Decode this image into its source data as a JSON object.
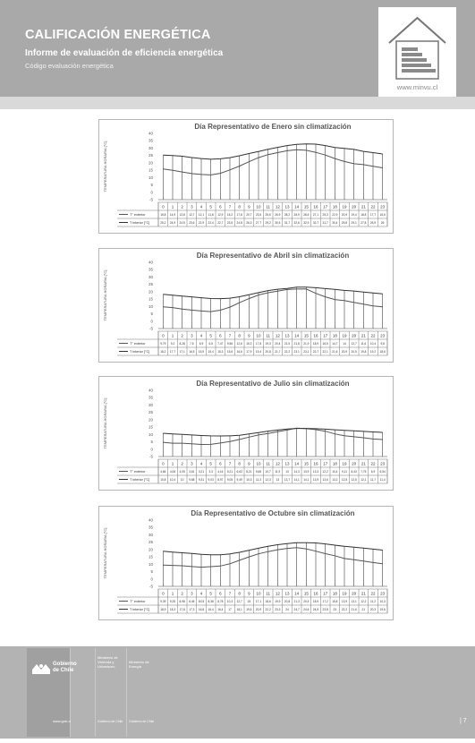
{
  "header": {
    "title": "CALIFICACIÓN ENERGÉTICA",
    "subtitle": "Informe de evaluación de eficiencia energética",
    "code": "Código evaluación energética",
    "url": "www.minvu.cl"
  },
  "chart_data": [
    {
      "type": "line",
      "title": "Día Representativo de Enero sin climatización",
      "ylabel": "TEMPERATURA HORARIA [°C]",
      "ylim": [
        -5,
        40
      ],
      "yticks": [
        "40",
        "35",
        "30",
        "25",
        "20",
        "15",
        "10",
        "5",
        "0",
        "-5"
      ],
      "x": [
        0,
        1,
        2,
        3,
        4,
        5,
        6,
        7,
        8,
        9,
        10,
        11,
        12,
        13,
        14,
        15,
        16,
        17,
        18,
        19,
        20,
        21,
        22,
        23
      ],
      "series": [
        {
          "name": "T° exterior",
          "values": [
            15.8,
            14.9,
            13.8,
            12.7,
            12.1,
            11.8,
            12.9,
            15.2,
            17.8,
            20.7,
            23.5,
            25.6,
            26.9,
            28.2,
            28.9,
            28.5,
            27.1,
            25.3,
            22.9,
            20.9,
            19.4,
            18.8,
            17.7,
            16.6
          ]
        },
        {
          "name": "T interior [°C]",
          "values": [
            25.2,
            24.9,
            24.5,
            23.6,
            22.9,
            22.4,
            22.7,
            23.5,
            24.8,
            26.3,
            27.7,
            29.2,
            30.5,
            31.7,
            32.6,
            32.9,
            32.7,
            31.7,
            30.4,
            29.8,
            29.1,
            27.8,
            26.9,
            26
          ]
        }
      ],
      "row_labels": [
        "T° exterior",
        "T interior [°C]"
      ]
    },
    {
      "type": "line",
      "title": "Día Representativo de Abril sin climatización",
      "ylabel": "TEMPERATURA HORARIA [°C]",
      "ylim": [
        -5,
        40
      ],
      "yticks": [
        "40",
        "35",
        "30",
        "25",
        "20",
        "15",
        "10",
        "5",
        "0",
        "-5"
      ],
      "x": [
        0,
        1,
        2,
        3,
        4,
        5,
        6,
        7,
        8,
        9,
        10,
        11,
        12,
        13,
        14,
        15,
        16,
        17,
        18,
        19,
        20,
        21,
        22,
        23
      ],
      "series": [
        {
          "name": "T° exterior",
          "values": [
            9.79,
            9.2,
            8.28,
            7.5,
            6.9,
            6.5,
            7.47,
            9.56,
            12.6,
            15.3,
            17.8,
            19.3,
            20.4,
            21.5,
            21.8,
            21.9,
            18.9,
            16.5,
            14.7,
            14,
            12.7,
            11.6,
            10.4,
            9.8
          ]
        },
        {
          "name": "T interior [°C]",
          "values": [
            18.2,
            17.7,
            17.1,
            16.5,
            15.9,
            15.4,
            15.3,
            15.6,
            16.6,
            17.9,
            19.4,
            20.8,
            21.7,
            22.2,
            23.1,
            23.1,
            22.7,
            22.1,
            21.6,
            20.9,
            20.5,
            19.8,
            19.2,
            18.6
          ]
        }
      ],
      "row_labels": [
        "T° exterior",
        "T interior [°C]"
      ]
    },
    {
      "type": "line",
      "title": "Día Representativo de Julio sin climatización",
      "ylabel": "TEMPERATURA HORARIA [°C]",
      "ylim": [
        -5,
        40
      ],
      "yticks": [
        "40",
        "35",
        "30",
        "25",
        "20",
        "15",
        "10",
        "5",
        "0",
        "-5"
      ],
      "x": [
        0,
        1,
        2,
        3,
        4,
        5,
        6,
        7,
        8,
        9,
        10,
        11,
        12,
        13,
        14,
        15,
        16,
        17,
        18,
        19,
        20,
        21,
        22,
        23
      ],
      "series": [
        {
          "name": "T° exterior",
          "values": [
            4.66,
            4.06,
            4.05,
            3.61,
            3.21,
            3.3,
            4.16,
            5.21,
            6.63,
            8.21,
            9.65,
            10.7,
            11.9,
            13,
            14.3,
            13.9,
            13.3,
            12.2,
            10.4,
            9.11,
            8.43,
            7.75,
            6.9,
            6.54
          ]
        },
        {
          "name": "T interior [°C]",
          "values": [
            10.8,
            10.4,
            10,
            9.68,
            9.31,
            9.03,
            8.97,
            9.05,
            9.49,
            10.3,
            11.3,
            12.3,
            13,
            13.7,
            14.1,
            14.1,
            13.9,
            13.6,
            13.2,
            12.8,
            12.5,
            12.1,
            11.7,
            11.4
          ]
        }
      ],
      "row_labels": [
        "T° exterior",
        "T interior [°C]"
      ]
    },
    {
      "type": "line",
      "title": "Día Representativo de Octubre sin climatización",
      "ylabel": "TEMPERATURA HORARIA [°C]",
      "ylim": [
        -5,
        40
      ],
      "yticks": [
        "40",
        "35",
        "30",
        "25",
        "20",
        "15",
        "10",
        "5",
        "0",
        "-5"
      ],
      "x": [
        0,
        1,
        2,
        3,
        4,
        5,
        6,
        7,
        8,
        9,
        10,
        11,
        12,
        13,
        14,
        15,
        16,
        17,
        18,
        19,
        20,
        21,
        22,
        23
      ],
      "series": [
        {
          "name": "T° exterior",
          "values": [
            9.39,
            9.25,
            8.98,
            8.45,
            8.03,
            8.38,
            8.78,
            10.3,
            12.7,
            15,
            17.1,
            18.6,
            19.9,
            20.8,
            21.3,
            20.5,
            18.9,
            17.2,
            15.8,
            13.9,
            13.1,
            12.2,
            11.2,
            10.3
          ]
        },
        {
          "name": "T interior [°C]",
          "values": [
            18.9,
            18.3,
            17.8,
            17.3,
            16.8,
            16.4,
            16.4,
            17,
            18.1,
            19.5,
            20.9,
            22.2,
            23.3,
            24,
            24.7,
            24.6,
            24.5,
            23.8,
            23,
            22.2,
            21.6,
            21,
            20.3,
            19.6
          ]
        }
      ],
      "row_labels": [
        "T° exterior",
        "T interior [°C]"
      ]
    }
  ],
  "footer": {
    "gobierno": [
      "Gobierno",
      "de Chile"
    ],
    "ministerio_vivienda": [
      "Ministerio de",
      "Vivienda y",
      "Urbanismo"
    ],
    "ministerio_energia": [
      "Ministerio de",
      "Energía"
    ],
    "url_gob": "www.gob.cl",
    "label_gob": "Gobierno de Chile",
    "label_gob2": "Gobierno de Chile",
    "page_number": "| 7"
  }
}
